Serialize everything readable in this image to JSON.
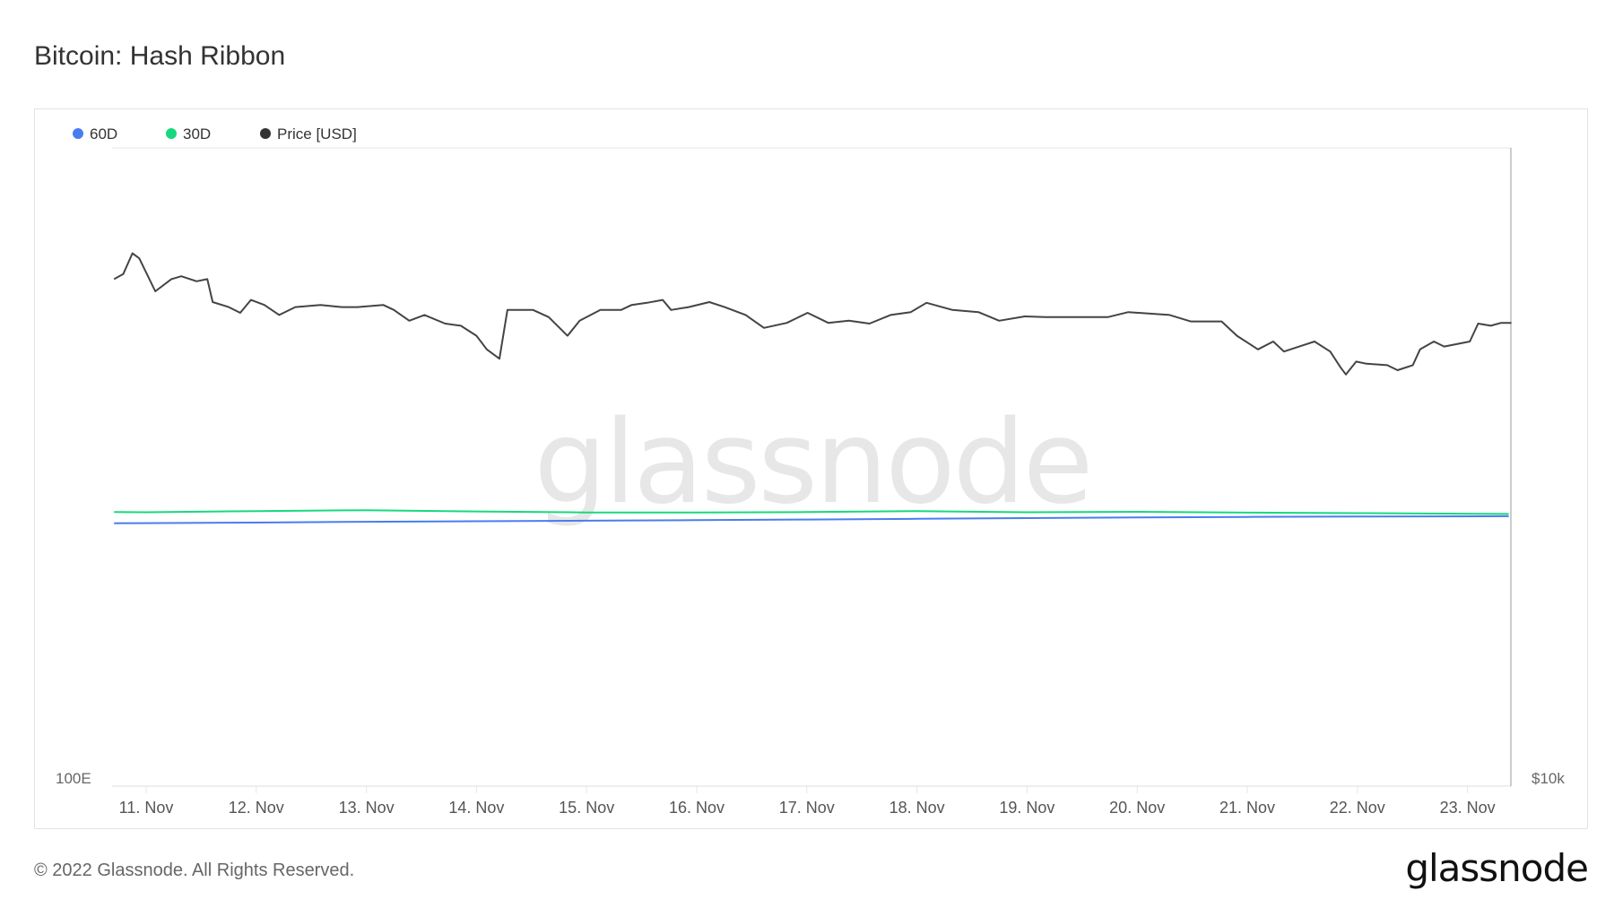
{
  "header": {
    "title": "Bitcoin: Hash Ribbon"
  },
  "footer": {
    "copyright": "© 2022 Glassnode. All Rights Reserved.",
    "logo": "glassnode"
  },
  "watermark": "glassnode",
  "chart_data": {
    "type": "line",
    "title": "Bitcoin: Hash Ribbon",
    "legend_position": "top-left",
    "grid": false,
    "legend": [
      {
        "name": "60D",
        "color": "#4a7cf0"
      },
      {
        "name": "30D",
        "color": "#16d97f"
      },
      {
        "name": "Price [USD]",
        "color": "#333333"
      }
    ],
    "x_ticks": [
      "11. Nov",
      "12. Nov",
      "13. Nov",
      "14. Nov",
      "15. Nov",
      "16. Nov",
      "17. Nov",
      "18. Nov",
      "19. Nov",
      "20. Nov",
      "21. Nov",
      "22. Nov",
      "23. Nov"
    ],
    "x_tick_dates": [
      "2022-11-11",
      "2022-11-12",
      "2022-11-13",
      "2022-11-14",
      "2022-11-15",
      "2022-11-16",
      "2022-11-17",
      "2022-11-18",
      "2022-11-19",
      "2022-11-20",
      "2022-11-21",
      "2022-11-22",
      "2022-11-23"
    ],
    "left_axis": {
      "label_min": "100E",
      "min": 100,
      "max": 440,
      "unit": "EH/s"
    },
    "right_axis": {
      "label_min": "$10k",
      "min": 10000,
      "max": 18900,
      "unit": "USD"
    },
    "hash_series": {
      "t": [
        "2022-11-10T17:00",
        "2022-11-11T00:00",
        "2022-11-12T00:00",
        "2022-11-13T00:00",
        "2022-11-14T00:00",
        "2022-11-15T00:00",
        "2022-11-16T00:00",
        "2022-11-17T00:00",
        "2022-11-18T00:00",
        "2022-11-19T00:00",
        "2022-11-20T00:00",
        "2022-11-21T00:00",
        "2022-11-22T00:00",
        "2022-11-23T09:00"
      ],
      "series": [
        {
          "name": "60D",
          "values": [
            240.0,
            240.1,
            240.4,
            240.8,
            241.1,
            241.4,
            241.7,
            242.0,
            242.4,
            242.8,
            243.1,
            243.4,
            243.6,
            243.8
          ]
        },
        {
          "name": "30D",
          "values": [
            246.0,
            245.9,
            246.5,
            247.0,
            246.3,
            245.8,
            245.8,
            246.0,
            246.5,
            245.9,
            246.1,
            245.7,
            245.4,
            245.0
          ]
        }
      ]
    },
    "price_series": {
      "name": "Price [USD]",
      "t": [
        "2022-11-10T17:00",
        "2022-11-10T19:00",
        "2022-11-10T21:00",
        "2022-11-10T22:30",
        "2022-11-11T02:00",
        "2022-11-11T05:30",
        "2022-11-11T07:40",
        "2022-11-11T11:00",
        "2022-11-11T13:20",
        "2022-11-11T14:30",
        "2022-11-11T18:00",
        "2022-11-11T20:30",
        "2022-11-11T22:50",
        "2022-11-12T01:45",
        "2022-11-12T05:00",
        "2022-11-12T08:30",
        "2022-11-12T14:00",
        "2022-11-12T18:40",
        "2022-11-12T22:00",
        "2022-11-13T03:40",
        "2022-11-13T06:00",
        "2022-11-13T09:20",
        "2022-11-13T12:40",
        "2022-11-13T17:10",
        "2022-11-13T20:35",
        "2022-11-14T00:00",
        "2022-11-14T02:15",
        "2022-11-14T05:00",
        "2022-11-14T06:45",
        "2022-11-14T12:20",
        "2022-11-14T15:45",
        "2022-11-14T19:50",
        "2022-11-14T22:30",
        "2022-11-15T03:00",
        "2022-11-15T07:30",
        "2022-11-15T09:50",
        "2022-11-15T13:10",
        "2022-11-15T16:35",
        "2022-11-15T18:25",
        "2022-11-15T22:15",
        "2022-11-16T02:45",
        "2022-11-16T06:05",
        "2022-11-16T10:40",
        "2022-11-16T14:40",
        "2022-11-16T19:40",
        "2022-11-17T00:10",
        "2022-11-17T04:40",
        "2022-11-17T09:10",
        "2022-11-17T13:40",
        "2022-11-17T18:15",
        "2022-11-17T22:40",
        "2022-11-18T02:05",
        "2022-11-18T07:45",
        "2022-11-18T13:25",
        "2022-11-18T17:55",
        "2022-11-18T23:30",
        "2022-11-19T04:00",
        "2022-11-19T10:50",
        "2022-11-19T17:35",
        "2022-11-19T22:05",
        "2022-11-20T07:05",
        "2022-11-20T11:40",
        "2022-11-20T18:25",
        "2022-11-20T21:45",
        "2022-11-21T02:20",
        "2022-11-21T05:40",
        "2022-11-21T08:00",
        "2022-11-21T11:20",
        "2022-11-21T14:40",
        "2022-11-21T18:05",
        "2022-11-21T20:20",
        "2022-11-21T21:30",
        "2022-11-21T23:45",
        "2022-11-22T02:00",
        "2022-11-22T06:30",
        "2022-11-22T08:45",
        "2022-11-22T12:05",
        "2022-11-22T13:40",
        "2022-11-22T16:40",
        "2022-11-22T18:55",
        "2022-11-23T00:30",
        "2022-11-23T02:20",
        "2022-11-23T05:05",
        "2022-11-23T07:20",
        "2022-11-23T09:35"
      ],
      "values": [
        17070,
        17140,
        17430,
        17360,
        16900,
        17070,
        17110,
        17040,
        17070,
        16750,
        16680,
        16600,
        16780,
        16710,
        16570,
        16680,
        16710,
        16680,
        16680,
        16710,
        16640,
        16490,
        16570,
        16450,
        16420,
        16280,
        16090,
        15960,
        16640,
        16640,
        16540,
        16280,
        16490,
        16640,
        16640,
        16710,
        16740,
        16780,
        16640,
        16680,
        16750,
        16680,
        16570,
        16390,
        16460,
        16600,
        16460,
        16490,
        16450,
        16570,
        16610,
        16740,
        16640,
        16610,
        16490,
        16550,
        16540,
        16540,
        16540,
        16610,
        16570,
        16480,
        16480,
        16280,
        16090,
        16200,
        16060,
        16130,
        16200,
        16060,
        15840,
        15740,
        15920,
        15890,
        15870,
        15800,
        15870,
        16090,
        16200,
        16130,
        16200,
        16450,
        16420,
        16460,
        16460
      ]
    }
  }
}
